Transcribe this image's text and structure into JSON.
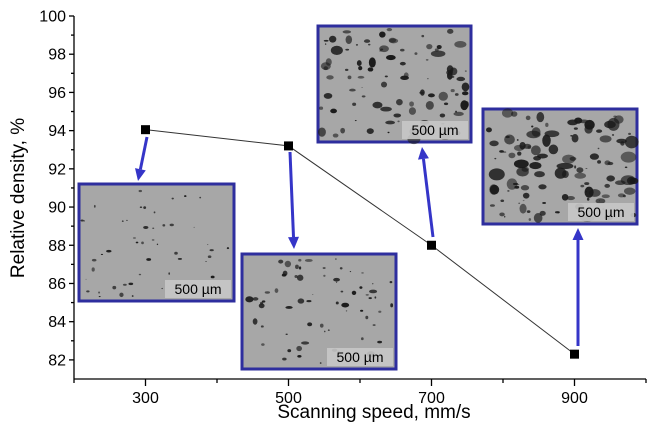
{
  "chart_data": {
    "type": "scatter",
    "title": "",
    "xlabel": "Scanning speed, mm/s",
    "ylabel": "Relative density, %",
    "x_ticks": [
      "300",
      "500",
      "700",
      "900"
    ],
    "y_ticks": [
      "82",
      "84",
      "86",
      "88",
      "90",
      "92",
      "94",
      "96",
      "98",
      "100"
    ],
    "xlim": [
      200,
      1000
    ],
    "ylim": [
      81,
      100
    ],
    "grid": false,
    "series": [
      {
        "x": [
          300,
          500,
          700,
          900
        ],
        "y": [
          94.05,
          93.2,
          88.0,
          82.3
        ],
        "marker": "square",
        "color": "#000000"
      }
    ],
    "micrographs": [
      {
        "speed": 300,
        "scale_label": "500 µm",
        "porosity": 0.03
      },
      {
        "speed": 500,
        "scale_label": "500 µm",
        "porosity": 0.1
      },
      {
        "speed": 700,
        "scale_label": "500 µm",
        "porosity": 0.22
      },
      {
        "speed": 900,
        "scale_label": "500 µm",
        "porosity": 0.3
      }
    ],
    "colors": {
      "arrow": "#3535c8",
      "frame": "#2e2e9e"
    }
  }
}
